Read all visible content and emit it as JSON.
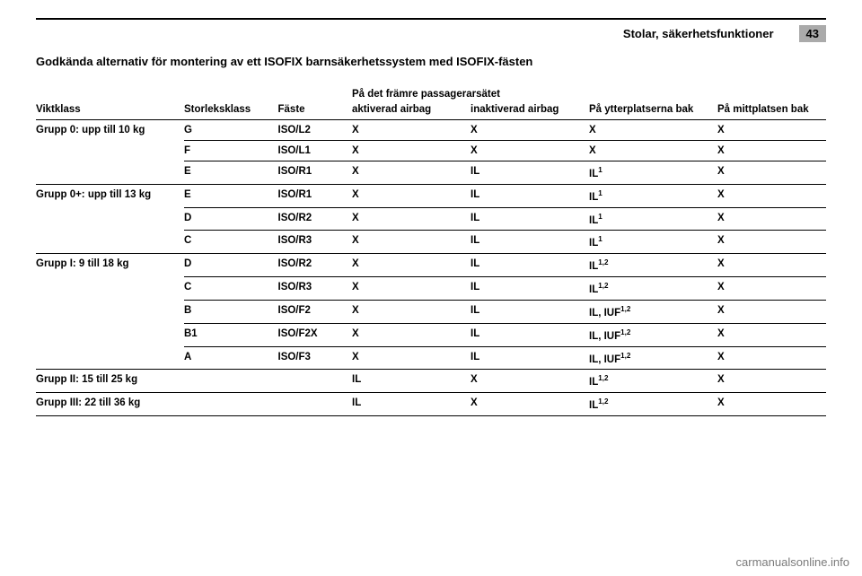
{
  "header": {
    "section": "Stolar, säkerhetsfunktioner",
    "page_number": "43"
  },
  "title": "Godkända alternativ för montering av ett ISOFIX barnsäkerhetssystem med ISOFIX-fästen",
  "columns": {
    "super_header": "På det främre passagerarsätet",
    "weight_class": "Viktklass",
    "size_class": "Storleksklass",
    "fixture": "Fäste",
    "activated": "aktiverad airbag",
    "deactivated": "inaktiverad airbag",
    "outer_rear": "På ytterplatserna bak",
    "center_rear": "På mittplatsen bak"
  },
  "groups": [
    {
      "label": "Grupp 0: upp till 10 kg",
      "rows": [
        {
          "size": "G",
          "fixture": "ISO/L2",
          "act": "X",
          "deact": "X",
          "outer": "X",
          "center": "X"
        },
        {
          "size": "F",
          "fixture": "ISO/L1",
          "act": "X",
          "deact": "X",
          "outer": "X",
          "center": "X"
        },
        {
          "size": "E",
          "fixture": "ISO/R1",
          "act": "X",
          "deact": "IL",
          "outer": "IL<sup>1</sup>",
          "center": "X"
        }
      ]
    },
    {
      "label": "Grupp 0+: upp till 13 kg",
      "rows": [
        {
          "size": "E",
          "fixture": "ISO/R1",
          "act": "X",
          "deact": "IL",
          "outer": "IL<sup>1</sup>",
          "center": "X"
        },
        {
          "size": "D",
          "fixture": "ISO/R2",
          "act": "X",
          "deact": "IL",
          "outer": "IL<sup>1</sup>",
          "center": "X"
        },
        {
          "size": "C",
          "fixture": "ISO/R3",
          "act": "X",
          "deact": "IL",
          "outer": "IL<sup>1</sup>",
          "center": "X"
        }
      ]
    },
    {
      "label": "Grupp I: 9 till 18 kg",
      "rows": [
        {
          "size": "D",
          "fixture": "ISO/R2",
          "act": "X",
          "deact": "IL",
          "outer": "IL<sup>1,2</sup>",
          "center": "X"
        },
        {
          "size": "C",
          "fixture": "ISO/R3",
          "act": "X",
          "deact": "IL",
          "outer": "IL<sup>1,2</sup>",
          "center": "X"
        },
        {
          "size": "B",
          "fixture": "ISO/F2",
          "act": "X",
          "deact": "IL",
          "outer": "IL, IUF<sup>1,2</sup>",
          "center": "X"
        },
        {
          "size": "B1",
          "fixture": "ISO/F2X",
          "act": "X",
          "deact": "IL",
          "outer": "IL, IUF<sup>1,2</sup>",
          "center": "X"
        },
        {
          "size": "A",
          "fixture": "ISO/F3",
          "act": "X",
          "deact": "IL",
          "outer": "IL, IUF<sup>1,2</sup>",
          "center": "X"
        }
      ]
    },
    {
      "label": "Grupp II: 15 till 25 kg",
      "rows": [
        {
          "size": "",
          "fixture": "",
          "act": "IL",
          "deact": "X",
          "outer": "IL<sup>1,2</sup>",
          "center": "X"
        }
      ]
    },
    {
      "label": "Grupp III: 22 till 36 kg",
      "rows": [
        {
          "size": "",
          "fixture": "",
          "act": "IL",
          "deact": "X",
          "outer": "IL<sup>1,2</sup>",
          "center": "X"
        }
      ]
    }
  ],
  "watermark": "carmanualsonline.info"
}
